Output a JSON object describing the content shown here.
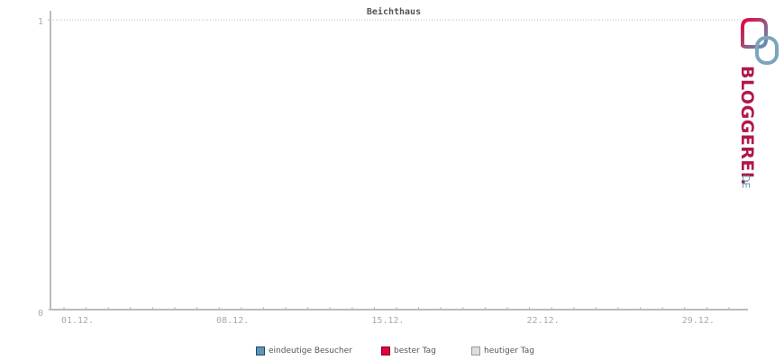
{
  "chart_data": {
    "type": "line",
    "title": "Beichthaus",
    "ylim": [
      0,
      1
    ],
    "yticks": [
      "0",
      "1"
    ],
    "xtick_labels": [
      "01.12.",
      "08.12.",
      "15.12.",
      "22.12.",
      "29.12."
    ],
    "grid": "horizontal dotted at 1",
    "series": [
      {
        "name": "eindeutige Besucher",
        "color": "#5f96b4",
        "border": "#1e4d64",
        "values": []
      },
      {
        "name": "bester Tag",
        "color": "#e8003c",
        "border": "#7a0020",
        "values": []
      },
      {
        "name": "heutiger Tag",
        "color": "#dddddd",
        "border": "#999999",
        "values": []
      }
    ],
    "legend": "bottom"
  },
  "logo": {
    "text": "BLOGGEREI.DE"
  }
}
